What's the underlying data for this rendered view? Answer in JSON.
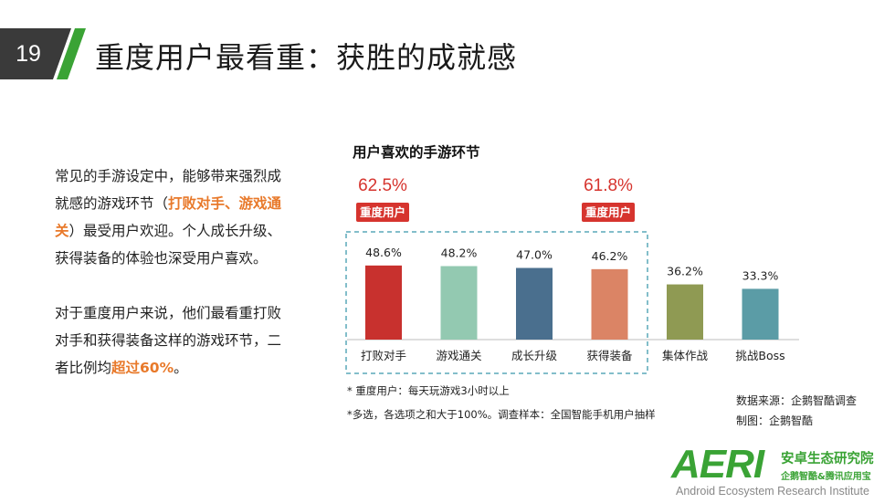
{
  "slide": {
    "number": "19",
    "title": "重度用户最看重：获胜的成就感",
    "colors": {
      "badge": "#3a3a3a",
      "accent_stripe": "#3aa335",
      "highlight": "#e8792a",
      "red": "#d6342e"
    }
  },
  "body": {
    "para1_before": "常见的手游设定中，能够带来强烈成就感的游戏环节（",
    "para1_highlight": "打败对手、游戏通关",
    "para1_after": "）最受用户欢迎。个人成长升级、获得装备的体验也深受用户喜欢。",
    "para2_before": "对于重度用户来说，他们最看重打败对手和获得装备这样的游戏环节，二者比例均",
    "para2_highlight": "超过60%",
    "para2_after": "。"
  },
  "chart_data": {
    "type": "bar",
    "title": "用户喜欢的手游环节",
    "categories": [
      "打败对手",
      "游戏通关",
      "成长升级",
      "获得装备",
      "集体作战",
      "挑战Boss"
    ],
    "values": [
      48.6,
      48.2,
      47.0,
      46.2,
      36.2,
      33.3
    ],
    "value_labels": [
      "48.6%",
      "48.2%",
      "47.0%",
      "46.2%",
      "36.2%",
      "33.3%"
    ],
    "colors": [
      "#c8312e",
      "#93c9b1",
      "#4a6f8e",
      "#db8465",
      "#8f9a53",
      "#5b9ca6"
    ],
    "ylim": [
      0,
      60
    ],
    "heavy_user_annotations": [
      {
        "category": "打败对手",
        "value": 62.5,
        "label": "62.5%",
        "tag": "重度用户"
      },
      {
        "category": "获得装备",
        "value": 61.8,
        "label": "61.8%",
        "tag": "重度用户"
      }
    ],
    "highlight_box": "dashed box around first four categories"
  },
  "notes": {
    "line1": "* 重度用户：每天玩游戏3小时以上",
    "line2": "*多选，各选项之和大于100%。调查样本：全国智能手机用户抽样"
  },
  "source": {
    "data_source": "数据来源：企鹅智酷调查",
    "made_by": "制图：企鹅智酷"
  },
  "logo": {
    "mark": "AERI",
    "cn_name": "安卓生态研究院",
    "cn_sub": "企鹅智酷&腾讯应用宝",
    "en_name": "Android Ecosystem Research Institute"
  }
}
